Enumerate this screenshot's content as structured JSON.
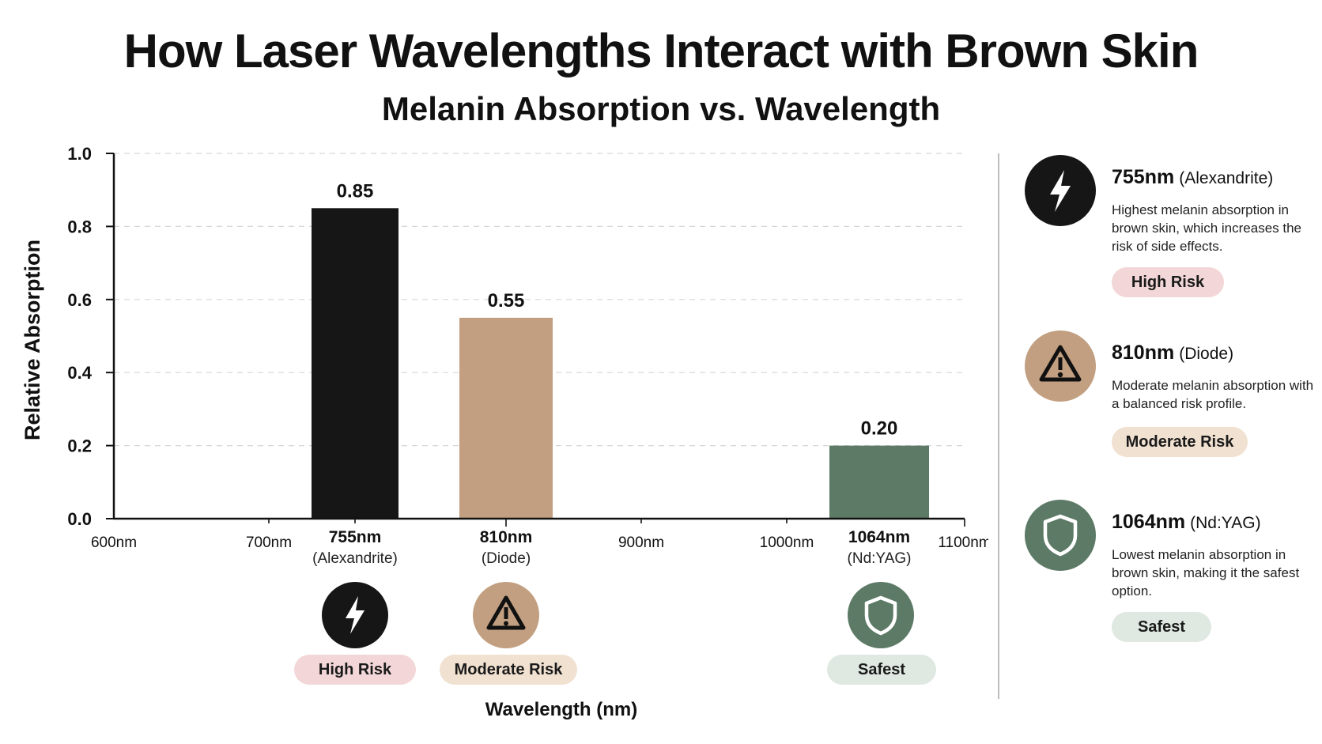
{
  "colors": {
    "alexandrite": "#161616",
    "diode": "#c29f80",
    "ndyag": "#5c7a66",
    "pill_high": "#f3d7d8",
    "pill_moderate": "#f1e1d1",
    "pill_safe": "#dfe8e1"
  },
  "chart_data": {
    "type": "bar",
    "title": "How Laser Wavelengths Interact with Brown Skin",
    "subtitle": "Melanin Absorption vs. Wavelength",
    "xlabel": "Wavelength (nm)",
    "ylabel": "Relative Absorption",
    "xlim": [
      600,
      1100
    ],
    "ylim": [
      0,
      1.0
    ],
    "grid": true,
    "x_ticks": [
      {
        "value": 600,
        "label": "600nm"
      },
      {
        "value": 700,
        "label": "700nm"
      },
      {
        "value": 900,
        "label": "900nm"
      },
      {
        "value": 1000,
        "label": "1000nm"
      },
      {
        "value": 1100,
        "label": "1100nm"
      }
    ],
    "y_ticks": [
      {
        "value": 0.0,
        "label": "0.0"
      },
      {
        "value": 0.2,
        "label": "0.2"
      },
      {
        "value": 0.4,
        "label": "0.4"
      },
      {
        "value": 0.6,
        "label": "0.6"
      },
      {
        "value": 0.8,
        "label": "0.8"
      },
      {
        "value": 1.0,
        "label": "1.0"
      }
    ],
    "bars": [
      {
        "x": 755,
        "value": 0.85,
        "value_label": "0.85",
        "wavelength_label": "755nm",
        "laser": "(Alexandrite)",
        "risk": "High Risk",
        "icon": "lightning-icon",
        "color_key": "alexandrite",
        "pill_key": "pill_high"
      },
      {
        "x": 810,
        "value": 0.55,
        "value_label": "0.55",
        "wavelength_label": "810nm",
        "laser": "(Diode)",
        "risk": "Moderate Risk",
        "icon": "warning-icon",
        "color_key": "diode",
        "pill_key": "pill_moderate"
      },
      {
        "x": 1064,
        "value": 0.2,
        "value_label": "0.20",
        "wavelength_label": "1064nm",
        "laser": "(Nd:YAG)",
        "risk": "Safest",
        "icon": "shield-icon",
        "color_key": "ndyag",
        "pill_key": "pill_safe"
      }
    ]
  },
  "legend": {
    "items": [
      {
        "wavelength": "755nm",
        "laser": "(Alexandrite)",
        "description": "Highest melanin absorption in brown skin, which increases the risk of side effects.",
        "risk": "High Risk",
        "icon": "lightning-icon"
      },
      {
        "wavelength": "810nm",
        "laser": "(Diode)",
        "description": "Moderate melanin absorption with a balanced risk profile.",
        "risk": "Moderate Risk",
        "icon": "warning-icon"
      },
      {
        "wavelength": "1064nm",
        "laser": "(Nd:YAG)",
        "description": "Lowest melanin absorption in brown skin, making it the safest option.",
        "risk": "Safest",
        "icon": "shield-icon"
      }
    ]
  }
}
